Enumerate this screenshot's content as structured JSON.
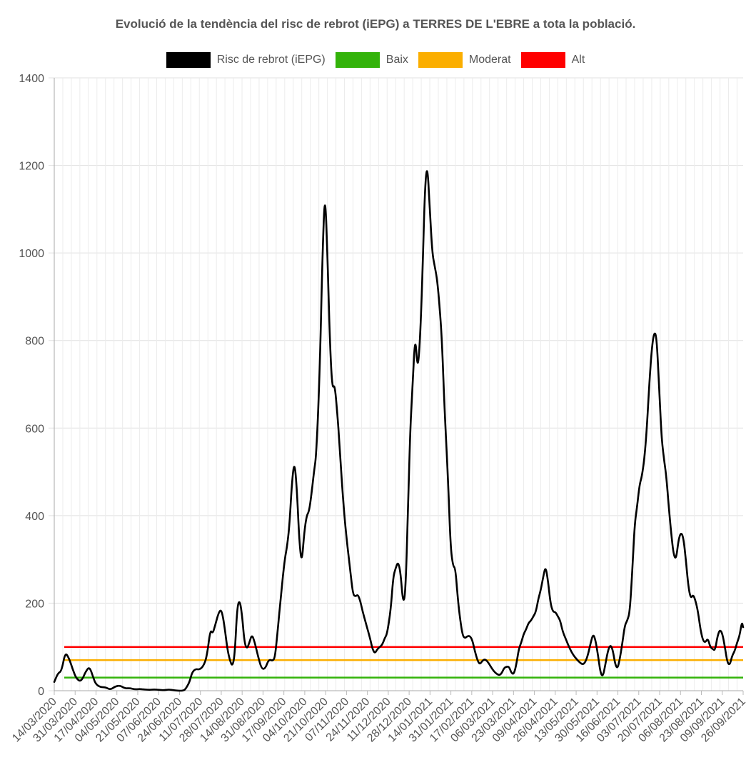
{
  "chart_data": {
    "type": "line",
    "title": "Evolució de la tendència del risc de rebrot (iEPG) a TERRES DE L'EBRE a tota la població.",
    "xlabel": "",
    "ylabel": "",
    "ylim": [
      0,
      1400
    ],
    "yticks": [
      0,
      200,
      400,
      600,
      800,
      1000,
      1200,
      1400
    ],
    "x_range": [
      "14/03/2020",
      "30/09/2021"
    ],
    "grid": true,
    "legend_position": "top",
    "xtick_labels": [
      "14/03/2020",
      "31/03/2020",
      "17/04/2020",
      "04/05/2020",
      "21/05/2020",
      "07/06/2020",
      "24/06/2020",
      "11/07/2020",
      "28/07/2020",
      "14/08/2020",
      "31/08/2020",
      "17/09/2020",
      "04/10/2020",
      "21/10/2020",
      "07/11/2020",
      "24/11/2020",
      "11/12/2020",
      "28/12/2020",
      "14/01/2021",
      "31/01/2021",
      "17/02/2021",
      "06/03/2021",
      "23/03/2021",
      "09/04/2021",
      "26/04/2021",
      "13/05/2021",
      "30/05/2021",
      "16/06/2021",
      "03/07/2021",
      "20/07/2021",
      "06/08/2021",
      "23/08/2021",
      "09/09/2021",
      "26/09/2021"
    ],
    "series": [
      {
        "name": "Risc de rebrot (iEPG)",
        "color": "#000000",
        "points": [
          [
            "14/03/2020",
            20
          ],
          [
            "17/03/2020",
            40
          ],
          [
            "20/03/2020",
            45
          ],
          [
            "23/03/2020",
            88
          ],
          [
            "26/03/2020",
            75
          ],
          [
            "29/03/2020",
            50
          ],
          [
            "01/04/2020",
            28
          ],
          [
            "05/04/2020",
            20
          ],
          [
            "09/04/2020",
            45
          ],
          [
            "12/04/2020",
            55
          ],
          [
            "15/04/2020",
            30
          ],
          [
            "17/04/2020",
            15
          ],
          [
            "21/04/2020",
            8
          ],
          [
            "25/04/2020",
            8
          ],
          [
            "29/04/2020",
            2
          ],
          [
            "03/05/2020",
            10
          ],
          [
            "07/05/2020",
            12
          ],
          [
            "11/05/2020",
            5
          ],
          [
            "15/05/2020",
            6
          ],
          [
            "19/05/2020",
            3
          ],
          [
            "23/05/2020",
            4
          ],
          [
            "27/05/2020",
            3
          ],
          [
            "31/05/2020",
            2
          ],
          [
            "04/06/2020",
            3
          ],
          [
            "08/06/2020",
            2
          ],
          [
            "12/06/2020",
            1
          ],
          [
            "16/06/2020",
            3
          ],
          [
            "20/06/2020",
            1
          ],
          [
            "24/06/2020",
            0
          ],
          [
            "28/06/2020",
            0
          ],
          [
            "30/06/2020",
            5
          ],
          [
            "03/07/2020",
            20
          ],
          [
            "05/07/2020",
            42
          ],
          [
            "08/07/2020",
            50
          ],
          [
            "11/07/2020",
            48
          ],
          [
            "14/07/2020",
            55
          ],
          [
            "17/07/2020",
            75
          ],
          [
            "20/07/2020",
            140
          ],
          [
            "22/07/2020",
            130
          ],
          [
            "24/07/2020",
            150
          ],
          [
            "27/07/2020",
            180
          ],
          [
            "29/07/2020",
            185
          ],
          [
            "31/07/2020",
            160
          ],
          [
            "03/08/2020",
            95
          ],
          [
            "05/08/2020",
            70
          ],
          [
            "07/08/2020",
            55
          ],
          [
            "09/08/2020",
            80
          ],
          [
            "11/08/2020",
            190
          ],
          [
            "13/08/2020",
            208
          ],
          [
            "15/08/2020",
            175
          ],
          [
            "17/08/2020",
            110
          ],
          [
            "19/08/2020",
            95
          ],
          [
            "21/08/2020",
            110
          ],
          [
            "23/08/2020",
            128
          ],
          [
            "25/08/2020",
            115
          ],
          [
            "28/08/2020",
            80
          ],
          [
            "31/08/2020",
            50
          ],
          [
            "03/09/2020",
            50
          ],
          [
            "06/09/2020",
            72
          ],
          [
            "09/09/2020",
            68
          ],
          [
            "11/09/2020",
            75
          ],
          [
            "13/09/2020",
            130
          ],
          [
            "16/09/2020",
            220
          ],
          [
            "19/09/2020",
            300
          ],
          [
            "21/09/2020",
            330
          ],
          [
            "23/09/2020",
            380
          ],
          [
            "25/09/2020",
            480
          ],
          [
            "27/09/2020",
            525
          ],
          [
            "29/09/2020",
            460
          ],
          [
            "01/10/2020",
            340
          ],
          [
            "03/10/2020",
            290
          ],
          [
            "05/10/2020",
            360
          ],
          [
            "07/10/2020",
            400
          ],
          [
            "09/10/2020",
            410
          ],
          [
            "11/10/2020",
            450
          ],
          [
            "13/10/2020",
            500
          ],
          [
            "15/10/2020",
            540
          ],
          [
            "18/10/2020",
            750
          ],
          [
            "20/10/2020",
            1000
          ],
          [
            "22/10/2020",
            1145
          ],
          [
            "24/10/2020",
            1000
          ],
          [
            "26/10/2020",
            800
          ],
          [
            "28/10/2020",
            690
          ],
          [
            "30/10/2020",
            700
          ],
          [
            "01/11/2020",
            640
          ],
          [
            "03/11/2020",
            560
          ],
          [
            "06/11/2020",
            430
          ],
          [
            "09/11/2020",
            340
          ],
          [
            "12/11/2020",
            270
          ],
          [
            "14/11/2020",
            220
          ],
          [
            "16/11/2020",
            215
          ],
          [
            "18/11/2020",
            220
          ],
          [
            "20/11/2020",
            205
          ],
          [
            "22/11/2020",
            180
          ],
          [
            "25/11/2020",
            150
          ],
          [
            "28/11/2020",
            120
          ],
          [
            "30/11/2020",
            95
          ],
          [
            "02/12/2020",
            85
          ],
          [
            "04/12/2020",
            95
          ],
          [
            "06/12/2020",
            100
          ],
          [
            "08/12/2020",
            105
          ],
          [
            "10/12/2020",
            120
          ],
          [
            "12/12/2020",
            130
          ],
          [
            "15/12/2020",
            185
          ],
          [
            "17/12/2020",
            260
          ],
          [
            "19/12/2020",
            280
          ],
          [
            "21/12/2020",
            295
          ],
          [
            "23/12/2020",
            270
          ],
          [
            "25/12/2020",
            200
          ],
          [
            "27/12/2020",
            220
          ],
          [
            "29/12/2020",
            400
          ],
          [
            "31/12/2020",
            600
          ],
          [
            "02/01/2021",
            700
          ],
          [
            "04/01/2021",
            815
          ],
          [
            "06/01/2021",
            730
          ],
          [
            "08/01/2021",
            800
          ],
          [
            "10/01/2021",
            950
          ],
          [
            "12/01/2021",
            1150
          ],
          [
            "14/01/2021",
            1205
          ],
          [
            "16/01/2021",
            1100
          ],
          [
            "18/01/2021",
            1000
          ],
          [
            "20/01/2021",
            970
          ],
          [
            "22/01/2021",
            940
          ],
          [
            "24/01/2021",
            880
          ],
          [
            "26/01/2021",
            800
          ],
          [
            "28/01/2021",
            650
          ],
          [
            "31/01/2021",
            480
          ],
          [
            "02/02/2021",
            330
          ],
          [
            "04/02/2021",
            285
          ],
          [
            "06/02/2021",
            280
          ],
          [
            "08/02/2021",
            210
          ],
          [
            "10/02/2021",
            160
          ],
          [
            "12/02/2021",
            125
          ],
          [
            "14/02/2021",
            120
          ],
          [
            "16/02/2021",
            125
          ],
          [
            "18/02/2021",
            125
          ],
          [
            "20/02/2021",
            115
          ],
          [
            "22/02/2021",
            90
          ],
          [
            "24/02/2021",
            70
          ],
          [
            "26/02/2021",
            60
          ],
          [
            "28/02/2021",
            68
          ],
          [
            "02/03/2021",
            72
          ],
          [
            "04/03/2021",
            68
          ],
          [
            "06/03/2021",
            60
          ],
          [
            "08/03/2021",
            50
          ],
          [
            "11/03/2021",
            40
          ],
          [
            "14/03/2021",
            35
          ],
          [
            "16/03/2021",
            40
          ],
          [
            "18/03/2021",
            52
          ],
          [
            "20/03/2021",
            55
          ],
          [
            "22/03/2021",
            55
          ],
          [
            "24/03/2021",
            40
          ],
          [
            "26/03/2021",
            38
          ],
          [
            "28/03/2021",
            60
          ],
          [
            "30/03/2021",
            95
          ],
          [
            "01/04/2021",
            110
          ],
          [
            "03/04/2021",
            130
          ],
          [
            "05/04/2021",
            140
          ],
          [
            "07/04/2021",
            155
          ],
          [
            "09/04/2021",
            160
          ],
          [
            "11/04/2021",
            170
          ],
          [
            "13/04/2021",
            180
          ],
          [
            "15/04/2021",
            210
          ],
          [
            "17/04/2021",
            230
          ],
          [
            "19/04/2021",
            260
          ],
          [
            "21/04/2021",
            285
          ],
          [
            "23/04/2021",
            250
          ],
          [
            "25/04/2021",
            200
          ],
          [
            "27/04/2021",
            180
          ],
          [
            "29/04/2021",
            180
          ],
          [
            "01/05/2021",
            170
          ],
          [
            "03/05/2021",
            160
          ],
          [
            "05/05/2021",
            135
          ],
          [
            "08/05/2021",
            115
          ],
          [
            "11/05/2021",
            95
          ],
          [
            "14/05/2021",
            80
          ],
          [
            "17/05/2021",
            70
          ],
          [
            "20/05/2021",
            62
          ],
          [
            "22/05/2021",
            60
          ],
          [
            "24/05/2021",
            68
          ],
          [
            "26/05/2021",
            85
          ],
          [
            "28/05/2021",
            110
          ],
          [
            "30/05/2021",
            130
          ],
          [
            "01/06/2021",
            115
          ],
          [
            "03/06/2021",
            80
          ],
          [
            "05/06/2021",
            40
          ],
          [
            "07/06/2021",
            32
          ],
          [
            "09/06/2021",
            60
          ],
          [
            "11/06/2021",
            90
          ],
          [
            "13/06/2021",
            105
          ],
          [
            "15/06/2021",
            95
          ],
          [
            "17/06/2021",
            60
          ],
          [
            "19/06/2021",
            50
          ],
          [
            "21/06/2021",
            75
          ],
          [
            "23/06/2021",
            110
          ],
          [
            "25/06/2021",
            150
          ],
          [
            "27/06/2021",
            160
          ],
          [
            "29/06/2021",
            180
          ],
          [
            "01/07/2021",
            270
          ],
          [
            "03/07/2021",
            380
          ],
          [
            "05/07/2021",
            420
          ],
          [
            "07/07/2021",
            470
          ],
          [
            "09/07/2021",
            490
          ],
          [
            "11/07/2021",
            530
          ],
          [
            "13/07/2021",
            600
          ],
          [
            "15/07/2021",
            700
          ],
          [
            "17/07/2021",
            780
          ],
          [
            "19/07/2021",
            820
          ],
          [
            "21/07/2021",
            810
          ],
          [
            "23/07/2021",
            700
          ],
          [
            "25/07/2021",
            580
          ],
          [
            "27/07/2021",
            530
          ],
          [
            "29/07/2021",
            490
          ],
          [
            "31/07/2021",
            420
          ],
          [
            "02/08/2021",
            360
          ],
          [
            "04/08/2021",
            310
          ],
          [
            "06/08/2021",
            300
          ],
          [
            "08/08/2021",
            345
          ],
          [
            "10/08/2021",
            362
          ],
          [
            "12/08/2021",
            350
          ],
          [
            "14/08/2021",
            300
          ],
          [
            "16/08/2021",
            240
          ],
          [
            "18/08/2021",
            210
          ],
          [
            "20/08/2021",
            220
          ],
          [
            "22/08/2021",
            205
          ],
          [
            "24/08/2021",
            180
          ],
          [
            "26/08/2021",
            140
          ],
          [
            "28/08/2021",
            115
          ],
          [
            "30/08/2021",
            110
          ],
          [
            "01/09/2021",
            120
          ],
          [
            "03/09/2021",
            100
          ],
          [
            "05/09/2021",
            95
          ],
          [
            "07/09/2021",
            92
          ],
          [
            "09/09/2021",
            125
          ],
          [
            "11/09/2021",
            140
          ],
          [
            "13/09/2021",
            130
          ],
          [
            "15/09/2021",
            100
          ],
          [
            "17/09/2021",
            65
          ],
          [
            "19/09/2021",
            58
          ],
          [
            "21/09/2021",
            80
          ],
          [
            "23/09/2021",
            90
          ],
          [
            "25/09/2021",
            110
          ],
          [
            "27/09/2021",
            125
          ],
          [
            "29/09/2021",
            158
          ],
          [
            "30/09/2021",
            145
          ]
        ]
      },
      {
        "name": "Baix",
        "color": "#33b30a",
        "constant": 30
      },
      {
        "name": "Moderat",
        "color": "#fbae00",
        "constant": 70
      },
      {
        "name": "Alt",
        "color": "#ff0000",
        "constant": 100
      }
    ]
  }
}
